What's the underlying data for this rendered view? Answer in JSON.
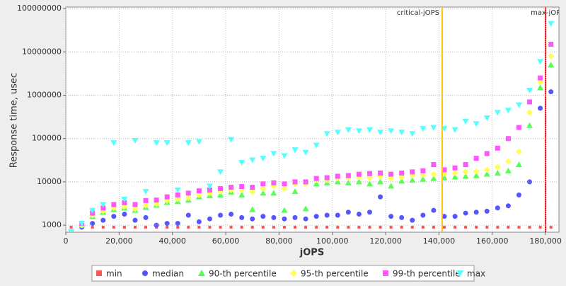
{
  "chart_data": {
    "type": "scatter",
    "y_label": "Response time, usec",
    "x_label": "jOPS",
    "log_y": true,
    "grid": true,
    "legend": "bottom",
    "xlim": [
      0,
      185000
    ],
    "ylim": [
      690,
      108000000
    ],
    "xticks": [
      0,
      {
        "value": 20000,
        "label": "20,000"
      },
      {
        "value": 40000,
        "label": "40,000"
      },
      {
        "value": 60000,
        "label": "60,000"
      },
      {
        "value": 80000,
        "label": "80,000"
      },
      {
        "value": 100000,
        "label": "100,000"
      },
      {
        "value": 120000,
        "label": "120,000"
      },
      {
        "value": 140000,
        "label": "140,000"
      },
      {
        "value": 160000,
        "label": "160,000"
      },
      {
        "value": 180000,
        "label": "180,000"
      }
    ],
    "yticks": [
      1000,
      10000,
      100000,
      1000000,
      10000000,
      100000000
    ],
    "vlines": [
      {
        "label": "critical-jOPS",
        "x": 141200,
        "color": "#ffc800"
      },
      {
        "label": "max-jOP",
        "x": 180000,
        "color": "#ff0000"
      }
    ],
    "x": [
      2000,
      6000,
      10000,
      14000,
      18000,
      22000,
      26000,
      30000,
      34000,
      38000,
      42000,
      46000,
      50000,
      54000,
      58000,
      62000,
      66000,
      70000,
      74000,
      78000,
      82000,
      86000,
      90000,
      94000,
      98000,
      102000,
      106000,
      110000,
      114000,
      118000,
      122000,
      126000,
      130000,
      134000,
      138000,
      142000,
      146000,
      150000,
      154000,
      158000,
      162000,
      166000,
      170000,
      174000,
      178000,
      182000
    ],
    "series": [
      {
        "name": "min",
        "color": "#ff5555",
        "marker": "square",
        "values": [
          900,
          900,
          900,
          900,
          900,
          900,
          900,
          900,
          900,
          900,
          900,
          900,
          900,
          900,
          900,
          900,
          900,
          900,
          900,
          900,
          900,
          900,
          900,
          900,
          900,
          900,
          900,
          900,
          900,
          900,
          900,
          900,
          900,
          900,
          900,
          900,
          900,
          900,
          900,
          900,
          900,
          900,
          900,
          900,
          900,
          900
        ]
      },
      {
        "name": "median",
        "color": "#5555ff",
        "marker": "circle",
        "values": [
          700,
          900,
          1100,
          1300,
          1600,
          1800,
          1300,
          1500,
          1000,
          1100,
          1100,
          1700,
          1200,
          1400,
          1700,
          1800,
          1500,
          1400,
          1600,
          1500,
          1400,
          1500,
          1400,
          1600,
          1700,
          1700,
          2000,
          1800,
          2000,
          4500,
          1600,
          1500,
          1300,
          1700,
          2200,
          1600,
          1600,
          1900,
          2000,
          2100,
          2500,
          2800,
          5000,
          10000,
          500000,
          1200000
        ]
      },
      {
        "name": "90-th percentile",
        "color": "#55ff55",
        "marker": "triangle",
        "values": [
          700,
          1000,
          1600,
          2000,
          2300,
          2500,
          2200,
          2600,
          2900,
          3400,
          3500,
          3800,
          4500,
          4800,
          5000,
          5800,
          5000,
          2300,
          5500,
          5500,
          2200,
          6000,
          2400,
          9000,
          9500,
          10000,
          9500,
          10000,
          9000,
          10000,
          8000,
          10500,
          11000,
          11500,
          12000,
          12500,
          13000,
          13500,
          14000,
          15000,
          16000,
          18000,
          25000,
          200000,
          1500000,
          5000000
        ]
      },
      {
        "name": "95-th percentile",
        "color": "#ffff55",
        "marker": "diamond",
        "values": [
          700,
          1000,
          1700,
          2100,
          2500,
          2700,
          2400,
          2900,
          3100,
          3700,
          4000,
          4300,
          5000,
          5500,
          6000,
          6500,
          6500,
          6000,
          7000,
          8000,
          7000,
          9000,
          9000,
          11000,
          11000,
          12000,
          12500,
          13000,
          12500,
          13500,
          12000,
          13000,
          14000,
          14500,
          15000,
          15500,
          16000,
          17000,
          17500,
          19000,
          22000,
          30000,
          50000,
          400000,
          2000000,
          8000000
        ]
      },
      {
        "name": "99-th percentile",
        "color": "#ff55ff",
        "marker": "square",
        "values": [
          700,
          1100,
          1900,
          2500,
          3000,
          3300,
          3000,
          3700,
          3800,
          4500,
          5000,
          5500,
          6200,
          6500,
          7000,
          7500,
          7800,
          7500,
          9000,
          9500,
          9000,
          10000,
          10000,
          12000,
          12500,
          13500,
          14000,
          15000,
          15500,
          16000,
          15000,
          16000,
          17000,
          18000,
          25000,
          19000,
          21000,
          25000,
          35000,
          45000,
          60000,
          100000,
          180000,
          700000,
          2500000,
          15000000
        ]
      },
      {
        "name": "max",
        "color": "#55ffff",
        "marker": "triangle-down",
        "values": [
          700,
          1100,
          2200,
          3000,
          80000,
          4000,
          90000,
          6000,
          80000,
          80000,
          6500,
          80000,
          85000,
          8000,
          17000,
          95000,
          28000,
          32000,
          35000,
          45000,
          40000,
          55000,
          48000,
          70000,
          130000,
          140000,
          160000,
          150000,
          160000,
          140000,
          150000,
          140000,
          130000,
          170000,
          180000,
          170000,
          160000,
          250000,
          220000,
          300000,
          400000,
          450000,
          600000,
          1300000,
          6000000,
          45000000
        ]
      }
    ]
  }
}
